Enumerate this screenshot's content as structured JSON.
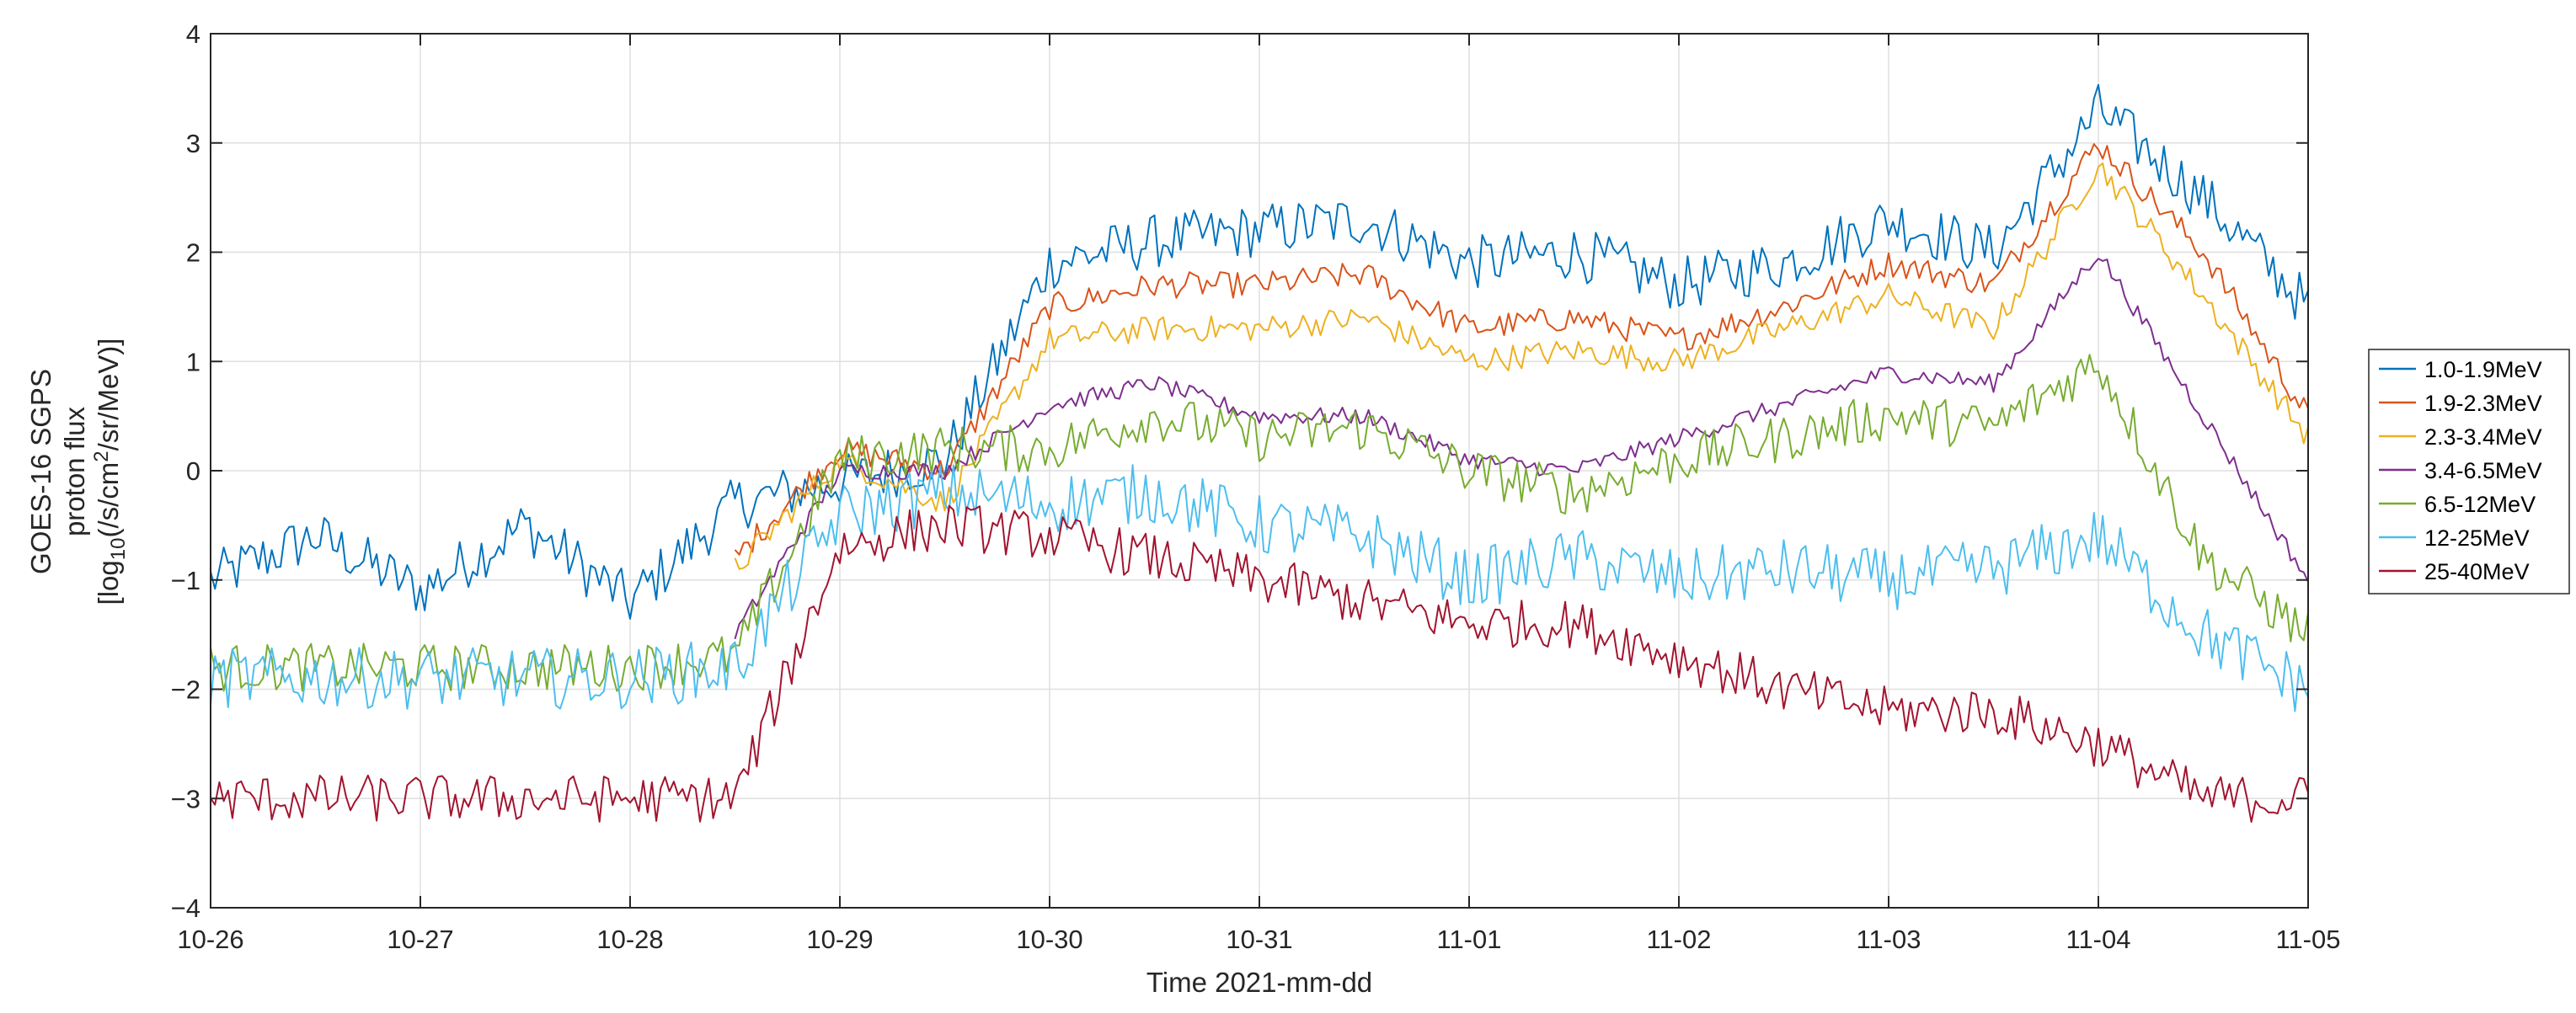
{
  "chart_data": {
    "type": "line",
    "xlabel": "Time 2021-mm-dd",
    "ylabel_lines": [
      "GOES-16 SGPS",
      "proton flux",
      "[log10(/s/cm2/sr/MeV)]"
    ],
    "x_tick_labels": [
      "10-26",
      "10-27",
      "10-28",
      "10-29",
      "10-30",
      "10-31",
      "11-01",
      "11-02",
      "11-03",
      "11-04",
      "11-05"
    ],
    "y_tick_labels": [
      "−4",
      "−3",
      "−2",
      "−1",
      "0",
      "1",
      "2",
      "3",
      "4"
    ],
    "xlim": [
      "2021-10-26",
      "2021-11-05"
    ],
    "ylim": [
      -4,
      4
    ],
    "grid": true,
    "legend_placement": "outside-right",
    "x": [
      "2021-10-26 00:00",
      "2021-10-26 12:00",
      "2021-10-27 00:00",
      "2021-10-27 12:00",
      "2021-10-28 00:00",
      "2021-10-28 12:00",
      "2021-10-29 00:00",
      "2021-10-29 12:00",
      "2021-10-30 00:00",
      "2021-10-30 12:00",
      "2021-10-31 00:00",
      "2021-10-31 12:00",
      "2021-11-01 00:00",
      "2021-11-01 12:00",
      "2021-11-02 00:00",
      "2021-11-02 12:00",
      "2021-11-03 00:00",
      "2021-11-03 12:00",
      "2021-11-04 00:00",
      "2021-11-04 12:00",
      "2021-11-05 00:00"
    ],
    "series": [
      {
        "name": "1.0-1.9MeV",
        "color": "#0072BD",
        "noise": 0.25,
        "values": [
          -1.0,
          -0.6,
          -1.1,
          -0.5,
          -1.2,
          -0.3,
          -0.1,
          0.1,
          1.9,
          2.1,
          2.2,
          2.3,
          1.9,
          2.0,
          1.7,
          1.9,
          2.3,
          2.0,
          3.3,
          2.5,
          1.5
        ]
      },
      {
        "name": "1.9-2.3MeV",
        "color": "#D95319",
        "noise": 0.12,
        "values": [
          null,
          null,
          null,
          null,
          null,
          -0.8,
          0.2,
          0.0,
          1.5,
          1.7,
          1.7,
          1.8,
          1.3,
          1.4,
          1.2,
          1.5,
          1.9,
          1.7,
          3.0,
          2.0,
          0.5
        ]
      },
      {
        "name": "2.3-3.4MeV",
        "color": "#EDB120",
        "noise": 0.12,
        "values": [
          null,
          null,
          null,
          null,
          null,
          -0.9,
          0.1,
          -0.3,
          1.2,
          1.3,
          1.3,
          1.4,
          1.0,
          1.1,
          1.0,
          1.3,
          1.6,
          1.3,
          2.8,
          1.6,
          0.3
        ]
      },
      {
        "name": "3.4-6.5MeV",
        "color": "#7E2F8E",
        "noise": 0.08,
        "values": [
          null,
          null,
          null,
          null,
          null,
          -1.5,
          0.0,
          0.0,
          0.6,
          0.8,
          0.5,
          0.5,
          0.1,
          0.0,
          0.3,
          0.6,
          0.9,
          0.8,
          2.0,
          0.5,
          -1.0
        ]
      },
      {
        "name": "6.5-12MeV",
        "color": "#77AC30",
        "noise": 0.22,
        "values": [
          -1.8,
          -1.8,
          -1.8,
          -1.8,
          -1.8,
          -1.7,
          0.1,
          0.2,
          0.2,
          0.5,
          0.3,
          0.4,
          0.0,
          -0.2,
          0.1,
          0.3,
          0.5,
          0.4,
          1.0,
          -0.8,
          -1.5
        ]
      },
      {
        "name": "12-25MeV",
        "color": "#4DBEEE",
        "noise": 0.28,
        "values": [
          -1.9,
          -1.9,
          -1.9,
          -1.9,
          -1.9,
          -1.8,
          -0.4,
          -0.2,
          -0.3,
          -0.2,
          -0.5,
          -0.6,
          -1.0,
          -0.8,
          -1.0,
          -0.9,
          -1.0,
          -0.9,
          -0.6,
          -1.5,
          -2.0
        ]
      },
      {
        "name": "25-40MeV",
        "color": "#A2142F",
        "noise": 0.22,
        "values": [
          -3.0,
          -3.0,
          -3.0,
          -3.0,
          -3.0,
          -3.0,
          -0.7,
          -0.5,
          -0.6,
          -0.8,
          -1.0,
          -1.2,
          -1.4,
          -1.4,
          -1.7,
          -2.0,
          -2.2,
          -2.2,
          -2.5,
          -3.0,
          -3.0
        ]
      }
    ]
  }
}
